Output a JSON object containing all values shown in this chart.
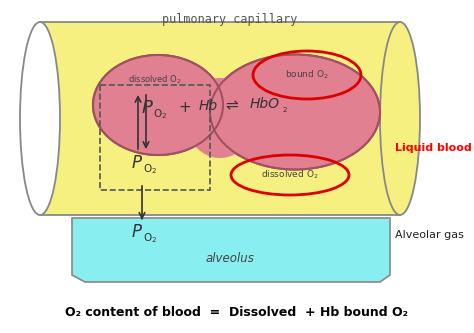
{
  "bg_color": "#ffffff",
  "capillary_color": "#f5f080",
  "capillary_edge": "#888888",
  "blood_blob_color": "#e08090",
  "blood_blob_edge": "#a05060",
  "alveolus_color": "#88eef0",
  "alveolus_edge": "#888888",
  "red_oval_edge": "#dd0000",
  "title": "pulmonary capillary",
  "title_color": "#555555",
  "label_liquid_blood": "Liquid blood",
  "label_alveolar_gas": "Alveolar gas",
  "label_alveolus": "alveolus",
  "bottom_text": "O₂ content of blood  =  Dissolved  + Hb bound O₂",
  "dashed_box_color": "#555555",
  "text_color": "#444444"
}
